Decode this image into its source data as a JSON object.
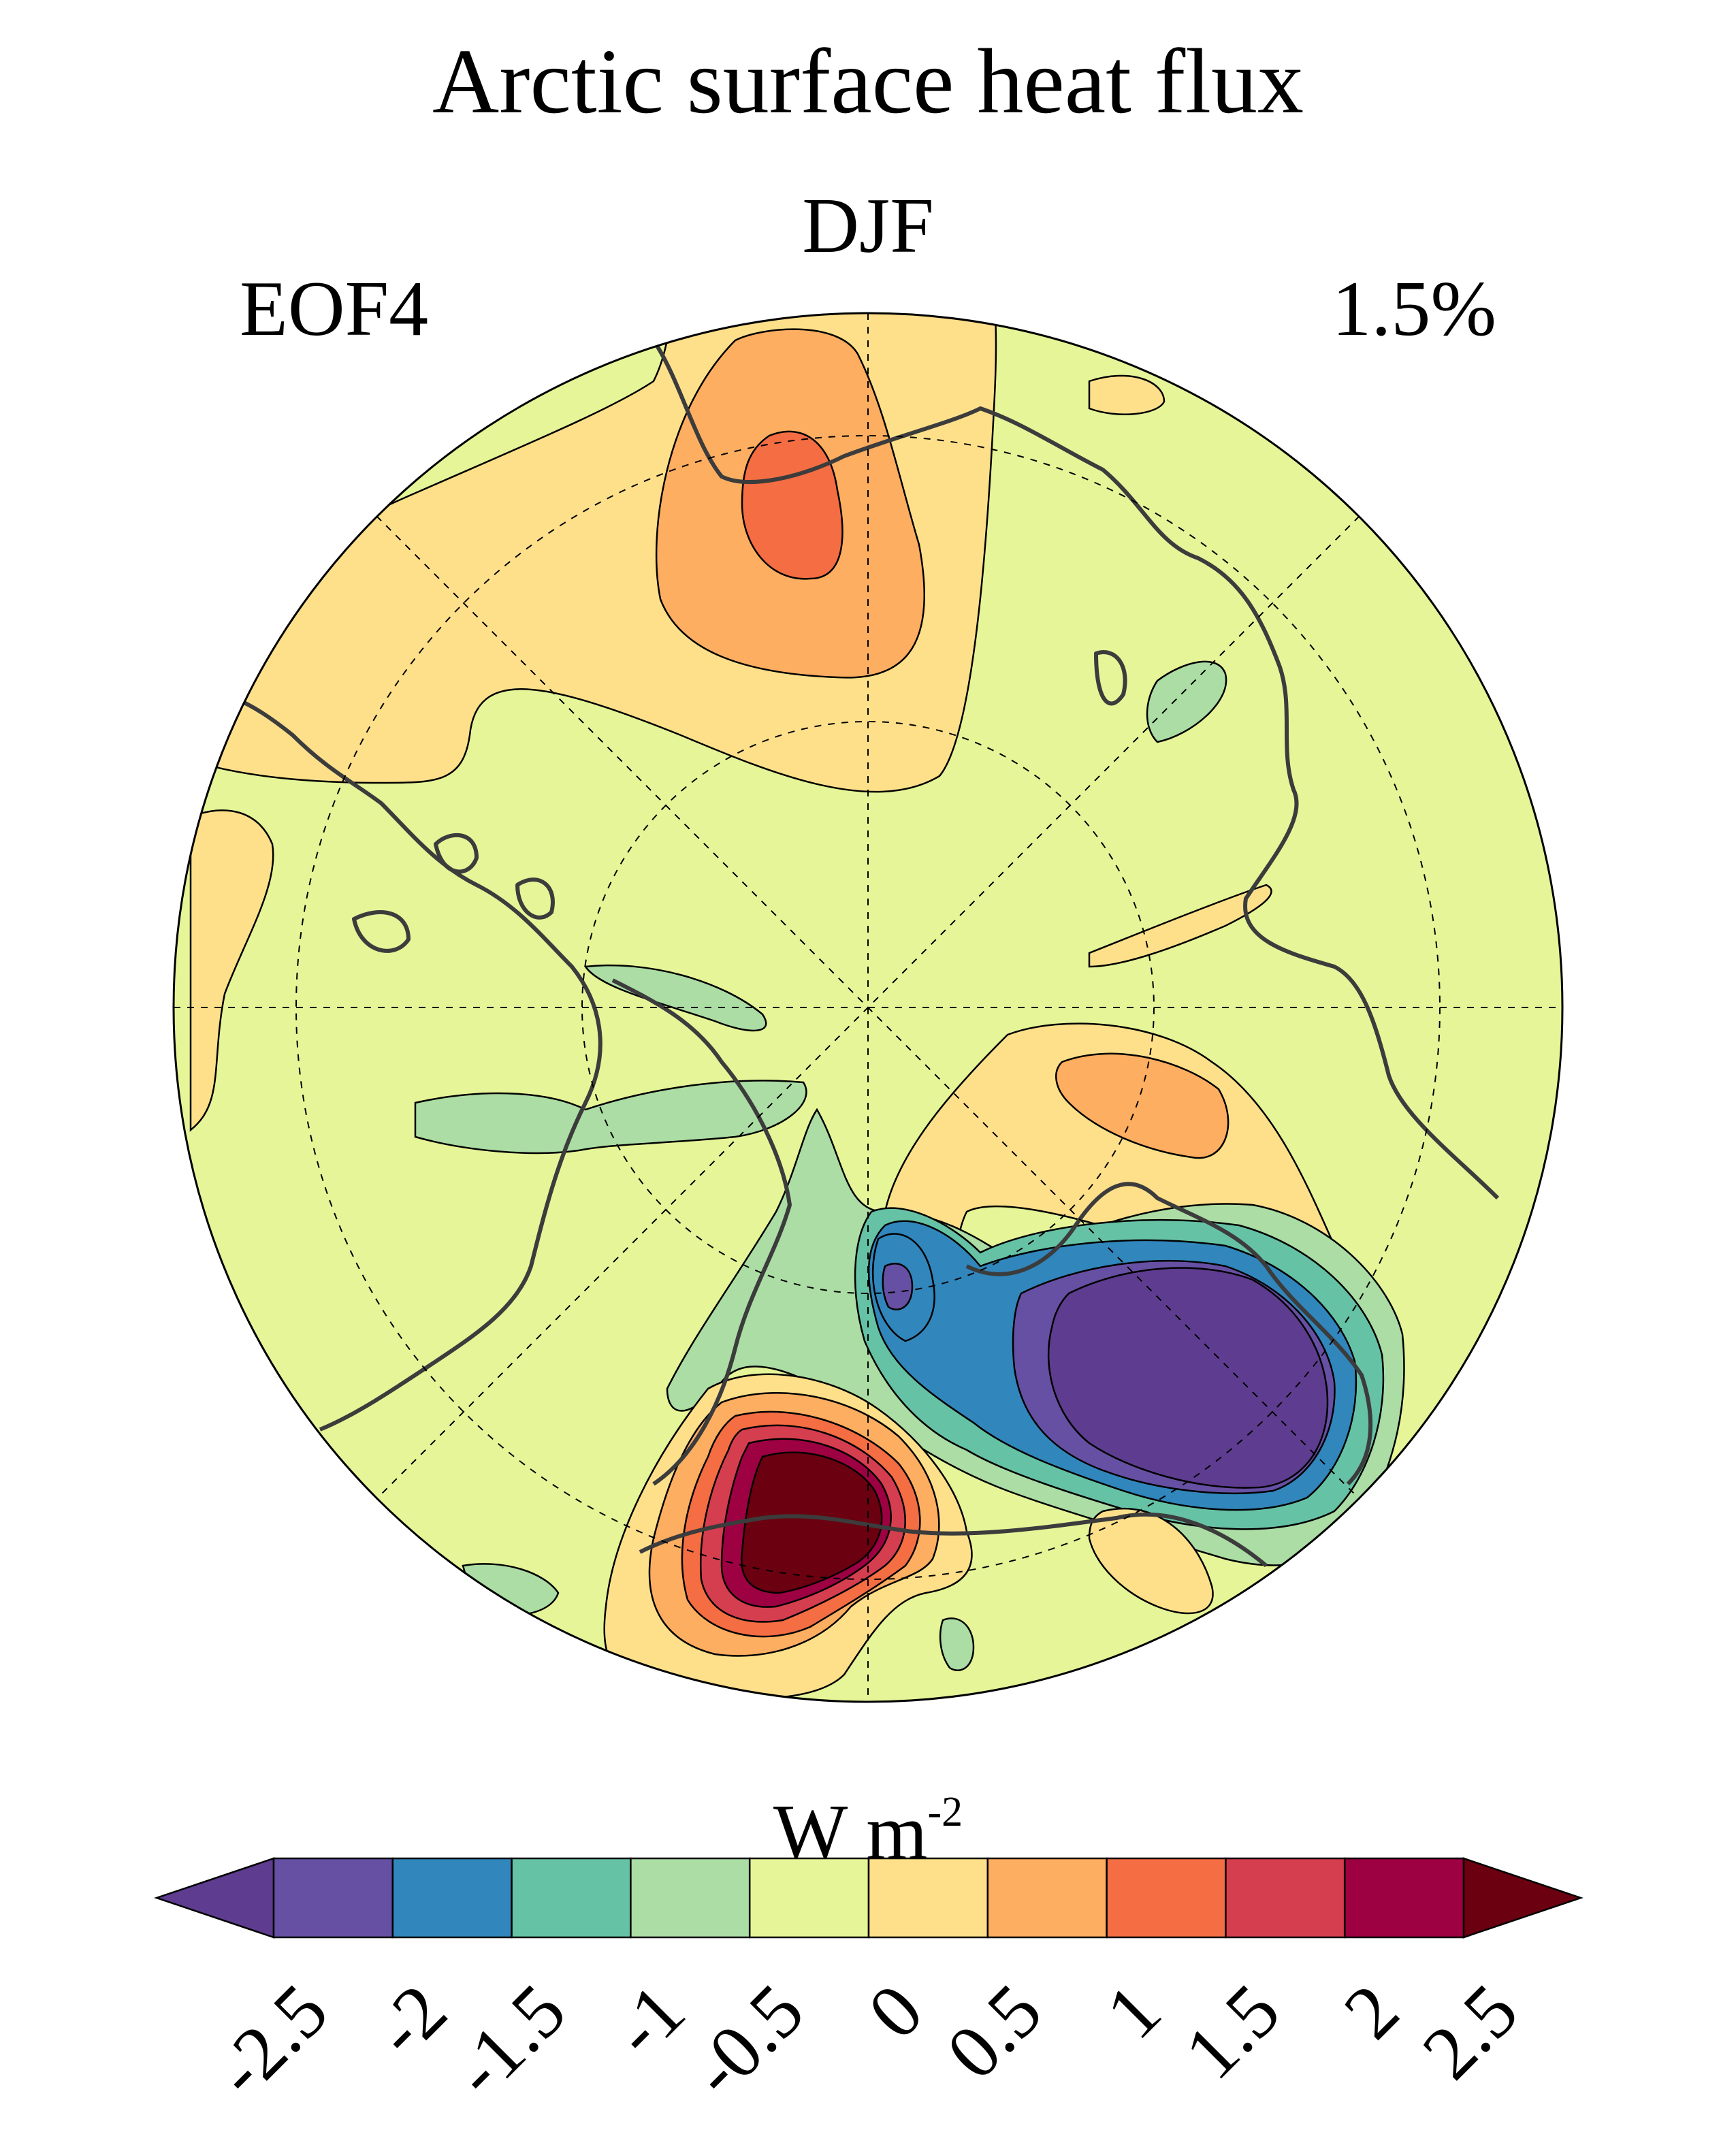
{
  "title": "Arctic surface heat flux",
  "season": "DJF",
  "mode": "EOF4",
  "explained_variance": "1.5%",
  "colorbar": {
    "unit_base": "W m",
    "unit_exponent": "-2",
    "tick_labels": [
      "-2.5",
      "-2",
      "-1.5",
      "-1",
      "-0.5",
      "0",
      "0.5",
      "1",
      "1.5",
      "2",
      "2.5"
    ],
    "colors": [
      "#5e3c8f",
      "#6650a3",
      "#3186bc",
      "#66c2a5",
      "#abdda4",
      "#e6f598",
      "#fee08b",
      "#fdae61",
      "#f46d43",
      "#d53e4f",
      "#9e0142",
      "#6a0010"
    ],
    "extend": "both"
  },
  "map": {
    "projection": "north polar stereographic",
    "background_color": "#e6f598",
    "anomaly_features": [
      {
        "name": "siberia-positive-core",
        "value": 1.5
      },
      {
        "name": "siberia-positive-ring",
        "value": 1.0
      },
      {
        "name": "siberia-positive-halo",
        "value": 0.5
      },
      {
        "name": "barents-negative-core",
        "value": -2.5
      },
      {
        "name": "norwegian-positive-core",
        "value": 2.5
      },
      {
        "name": "baltic-positive",
        "value": 1.0
      },
      {
        "name": "bering-negative",
        "value": -1.0
      },
      {
        "name": "hudson-negative",
        "value": -1.0
      }
    ]
  }
}
